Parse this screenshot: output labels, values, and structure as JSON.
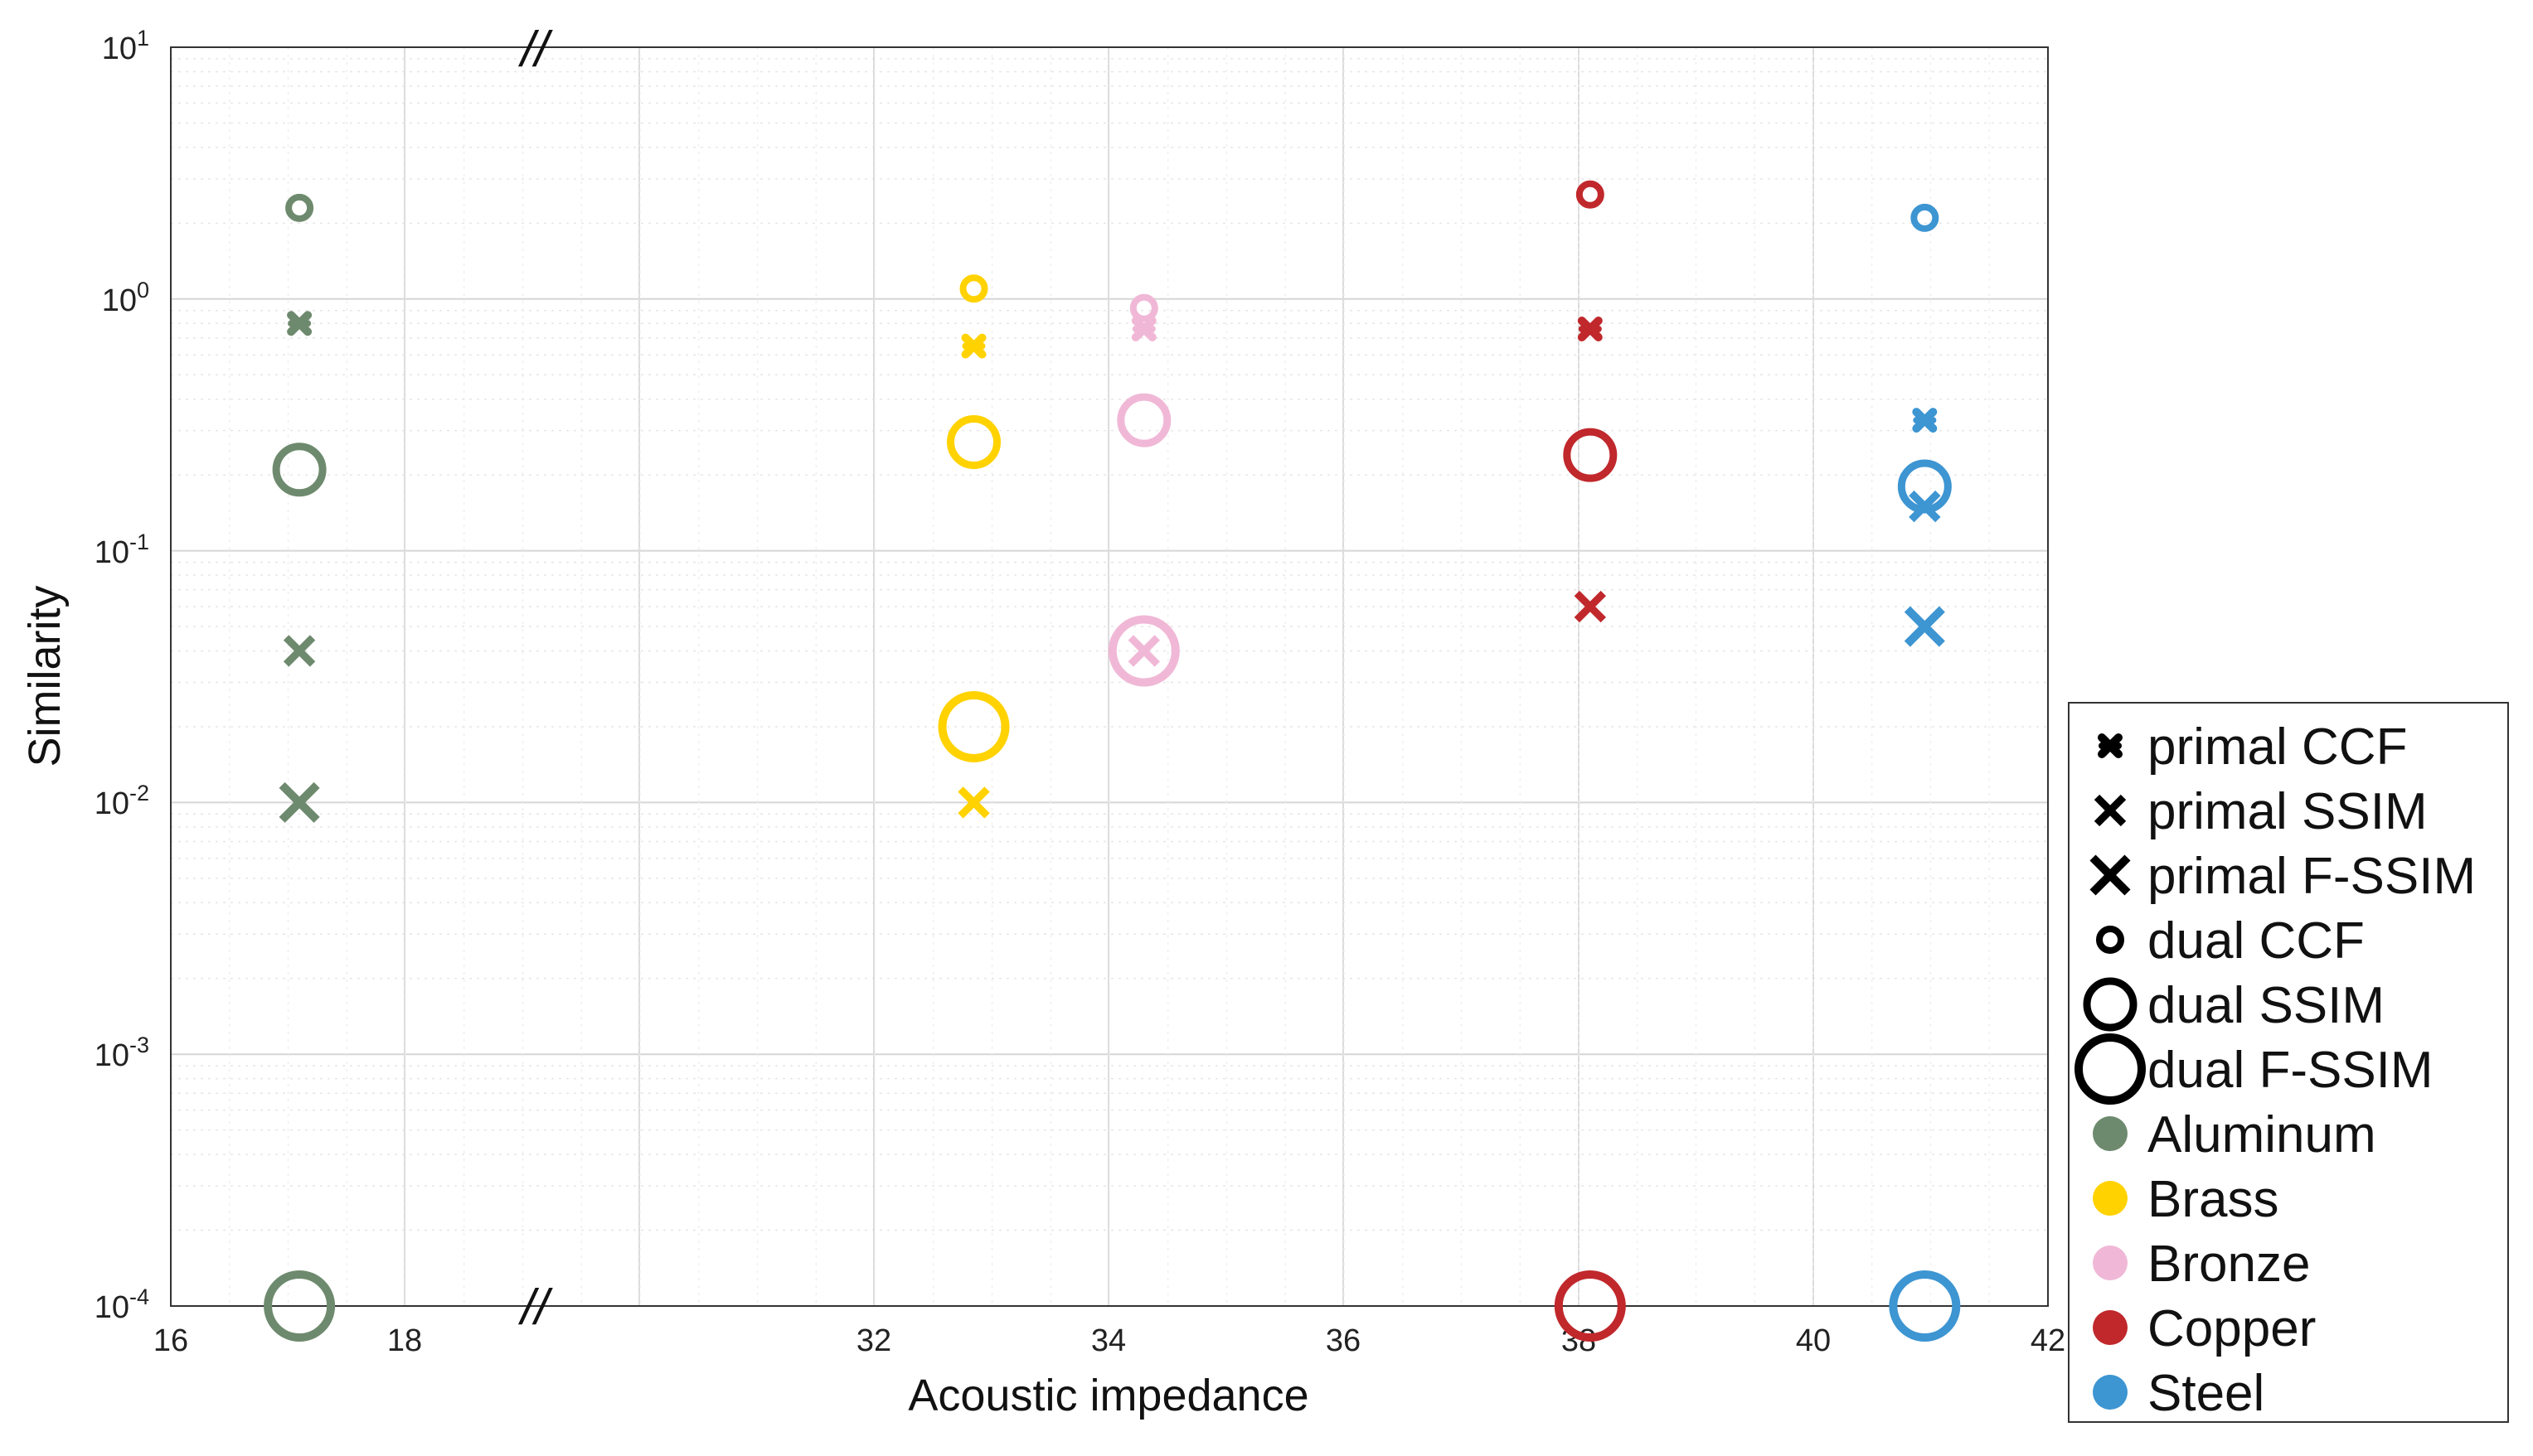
{
  "chart_data": {
    "type": "scatter",
    "xlabel": "Acoustic impedance",
    "ylabel": "Similarity",
    "y_scale": "log",
    "ylim": [
      0.0001,
      10
    ],
    "grid": true,
    "axis_break": "//",
    "x_tick_labels": [
      "16",
      "18",
      "32",
      "34",
      "36",
      "38",
      "40",
      "42"
    ],
    "y_tick_labels": [
      {
        "base": "10",
        "exp": "1"
      },
      {
        "base": "10",
        "exp": "0"
      },
      {
        "base": "10",
        "exp": "-1"
      },
      {
        "base": "10",
        "exp": "-2"
      },
      {
        "base": "10",
        "exp": "-3"
      },
      {
        "base": "10",
        "exp": "-4"
      }
    ],
    "legend_position": "outside-right",
    "materials": [
      {
        "name": "Aluminum",
        "color": "#6e8a6e",
        "x": 17.1
      },
      {
        "name": "Brass",
        "color": "#ffd200",
        "x": 32.85
      },
      {
        "name": "Bronze",
        "color": "#f0b8d6",
        "x": 34.3
      },
      {
        "name": "Copper",
        "color": "#c0282c",
        "x": 38.1
      },
      {
        "name": "Steel",
        "color": "#3d95d2",
        "x": 40.95
      }
    ],
    "metrics": [
      {
        "name": "primal CCF",
        "marker": "cross-small"
      },
      {
        "name": "primal SSIM",
        "marker": "cross-medium"
      },
      {
        "name": "primal F-SSIM",
        "marker": "cross-large"
      },
      {
        "name": "dual CCF",
        "marker": "circle-small"
      },
      {
        "name": "dual SSIM",
        "marker": "circle-medium"
      },
      {
        "name": "dual F-SSIM",
        "marker": "circle-large"
      }
    ],
    "points": [
      {
        "material": "Aluminum",
        "metric": "dual CCF",
        "y": 2.3
      },
      {
        "material": "Aluminum",
        "metric": "primal CCF",
        "y": 0.8
      },
      {
        "material": "Aluminum",
        "metric": "dual SSIM",
        "y": 0.21
      },
      {
        "material": "Aluminum",
        "metric": "primal SSIM",
        "y": 0.04
      },
      {
        "material": "Aluminum",
        "metric": "primal F-SSIM",
        "y": 0.01
      },
      {
        "material": "Aluminum",
        "metric": "dual F-SSIM",
        "y": 0.0001
      },
      {
        "material": "Brass",
        "metric": "dual CCF",
        "y": 1.1
      },
      {
        "material": "Brass",
        "metric": "primal CCF",
        "y": 0.65
      },
      {
        "material": "Brass",
        "metric": "dual SSIM",
        "y": 0.27
      },
      {
        "material": "Brass",
        "metric": "dual F-SSIM",
        "y": 0.02
      },
      {
        "material": "Brass",
        "metric": "primal SSIM",
        "y": 0.01
      },
      {
        "material": "Bronze",
        "metric": "dual CCF",
        "y": 0.92
      },
      {
        "material": "Bronze",
        "metric": "primal CCF",
        "y": 0.76
      },
      {
        "material": "Bronze",
        "metric": "dual SSIM",
        "y": 0.33
      },
      {
        "material": "Bronze",
        "metric": "dual F-SSIM",
        "y": 0.04
      },
      {
        "material": "Bronze",
        "metric": "primal SSIM",
        "y": 0.04
      },
      {
        "material": "Copper",
        "metric": "dual CCF",
        "y": 2.6
      },
      {
        "material": "Copper",
        "metric": "primal CCF",
        "y": 0.76
      },
      {
        "material": "Copper",
        "metric": "dual SSIM",
        "y": 0.24
      },
      {
        "material": "Copper",
        "metric": "primal SSIM",
        "y": 0.06
      },
      {
        "material": "Copper",
        "metric": "dual F-SSIM",
        "y": 0.0001
      },
      {
        "material": "Steel",
        "metric": "dual CCF",
        "y": 2.1
      },
      {
        "material": "Steel",
        "metric": "primal CCF",
        "y": 0.33
      },
      {
        "material": "Steel",
        "metric": "dual SSIM",
        "y": 0.18
      },
      {
        "material": "Steel",
        "metric": "primal SSIM",
        "y": 0.15
      },
      {
        "material": "Steel",
        "metric": "primal F-SSIM",
        "y": 0.05
      },
      {
        "material": "Steel",
        "metric": "dual F-SSIM",
        "y": 0.0001
      }
    ]
  }
}
